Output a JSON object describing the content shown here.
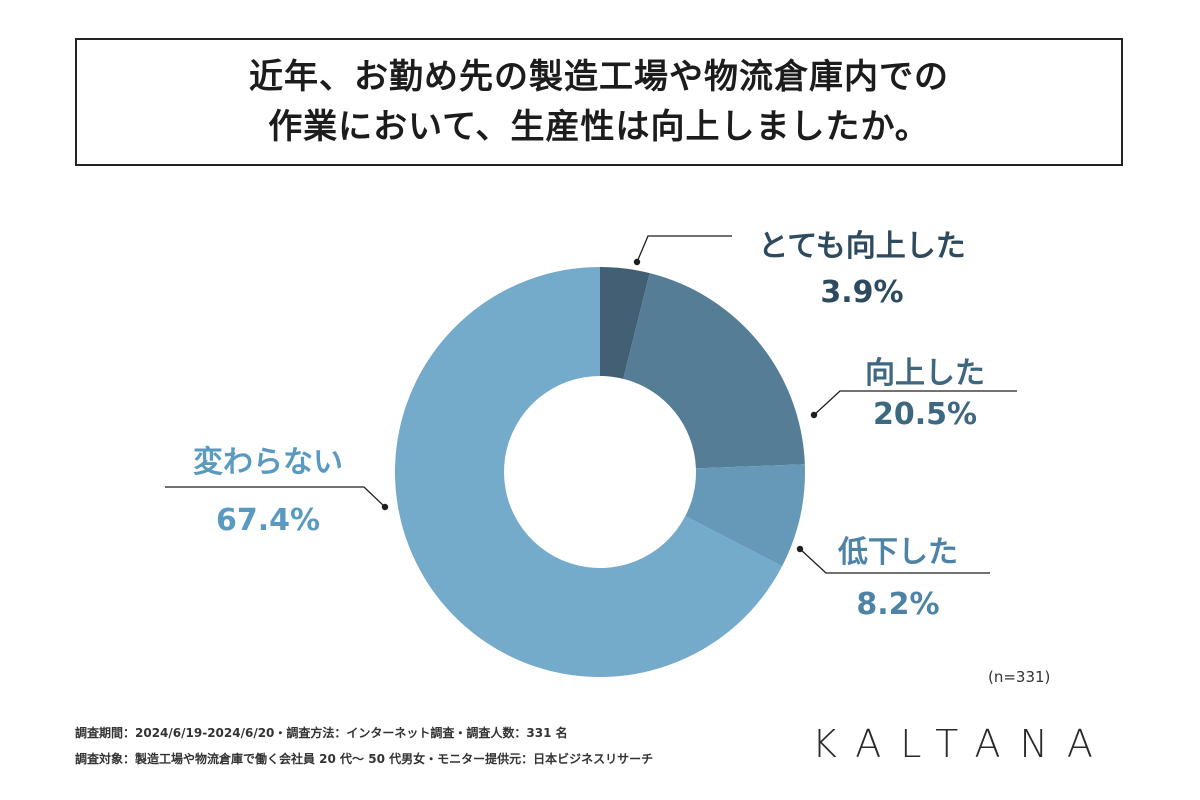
{
  "title": {
    "line1": "近年、お勤め先の製造工場や物流倉庫内での",
    "line2": "作業において、生産性は向上しましたか。"
  },
  "chart_data": {
    "type": "pie",
    "donut": true,
    "unit": "%",
    "slices": [
      {
        "label": "とても向上した",
        "value": 3.9,
        "display": "3.9%",
        "color": "#435f73",
        "label_color": "#2d4a5f"
      },
      {
        "label": "向上した",
        "value": 20.5,
        "display": "20.5%",
        "color": "#557e96",
        "label_color": "#3e6780"
      },
      {
        "label": "低下した",
        "value": 8.2,
        "display": "8.2%",
        "color": "#6699b8",
        "label_color": "#4d84a6"
      },
      {
        "label": "変わらない",
        "value": 67.4,
        "display": "67.4%",
        "color": "#75abca",
        "label_color": "#5b9ac0"
      }
    ]
  },
  "sample_note": "(n=331)",
  "footer": {
    "line1": "調査期間：2024/6/19-2024/6/20・調査方法：インターネット調査・調査人数：331 名",
    "line2": "調査対象：製造工場や物流倉庫で働く会社員 20 代〜 50 代男女・モニター提供元：日本ビジネスリサーチ"
  },
  "logo": "KALTANA"
}
